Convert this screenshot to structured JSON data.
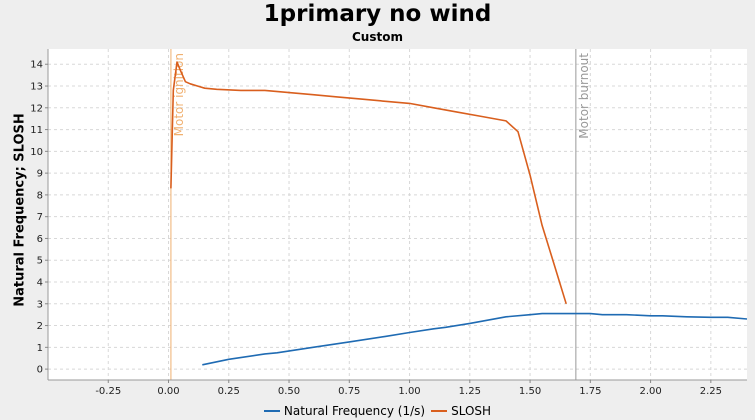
{
  "chart_data": {
    "type": "line",
    "title": "1primary no wind",
    "subtitle": "Custom",
    "xlabel": "",
    "ylabel": "Natural Frequency; SLOSH",
    "xlim": [
      -0.5,
      2.4
    ],
    "ylim": [
      -0.5,
      14.7
    ],
    "x_ticks": [
      -0.25,
      0.0,
      0.25,
      0.5,
      0.75,
      1.0,
      1.25,
      1.5,
      1.75,
      2.0,
      2.25
    ],
    "y_ticks": [
      0,
      1,
      2,
      3,
      4,
      5,
      6,
      7,
      8,
      9,
      10,
      11,
      12,
      13,
      14
    ],
    "grid": true,
    "legend_position": "bottom",
    "markers": [
      {
        "label": "Motor ignition",
        "x": 0.01,
        "color": "#f0b070"
      },
      {
        "label": "Motor burnout",
        "x": 1.69,
        "color": "#999999"
      }
    ],
    "series": [
      {
        "name": "Natural Frequency (1/s)",
        "color": "#1f6bb3",
        "x": [
          0.14,
          0.25,
          0.4,
          0.45,
          0.6,
          0.75,
          0.9,
          1.0,
          1.1,
          1.15,
          1.25,
          1.4,
          1.5,
          1.55,
          1.65,
          1.75,
          1.8,
          1.9,
          2.0,
          2.05,
          2.15,
          2.25,
          2.32,
          2.4
        ],
        "values": [
          0.2,
          0.45,
          0.7,
          0.75,
          1.0,
          1.25,
          1.5,
          1.68,
          1.85,
          1.92,
          2.1,
          2.4,
          2.5,
          2.55,
          2.55,
          2.55,
          2.5,
          2.5,
          2.45,
          2.45,
          2.4,
          2.38,
          2.38,
          2.3
        ]
      },
      {
        "name": "SLOSH",
        "color": "#d95f1e",
        "x": [
          0.01,
          0.02,
          0.035,
          0.05,
          0.07,
          0.09,
          0.12,
          0.15,
          0.2,
          0.3,
          0.4,
          0.5,
          0.6,
          0.7,
          0.8,
          0.9,
          1.0,
          1.1,
          1.2,
          1.3,
          1.4,
          1.45,
          1.5,
          1.55,
          1.6,
          1.65
        ],
        "values": [
          8.3,
          12.8,
          14.1,
          13.7,
          13.2,
          13.1,
          13.0,
          12.9,
          12.85,
          12.8,
          12.8,
          12.7,
          12.6,
          12.5,
          12.4,
          12.3,
          12.2,
          12.0,
          11.8,
          11.6,
          11.4,
          10.9,
          8.9,
          6.6,
          4.8,
          3.0
        ]
      }
    ]
  }
}
